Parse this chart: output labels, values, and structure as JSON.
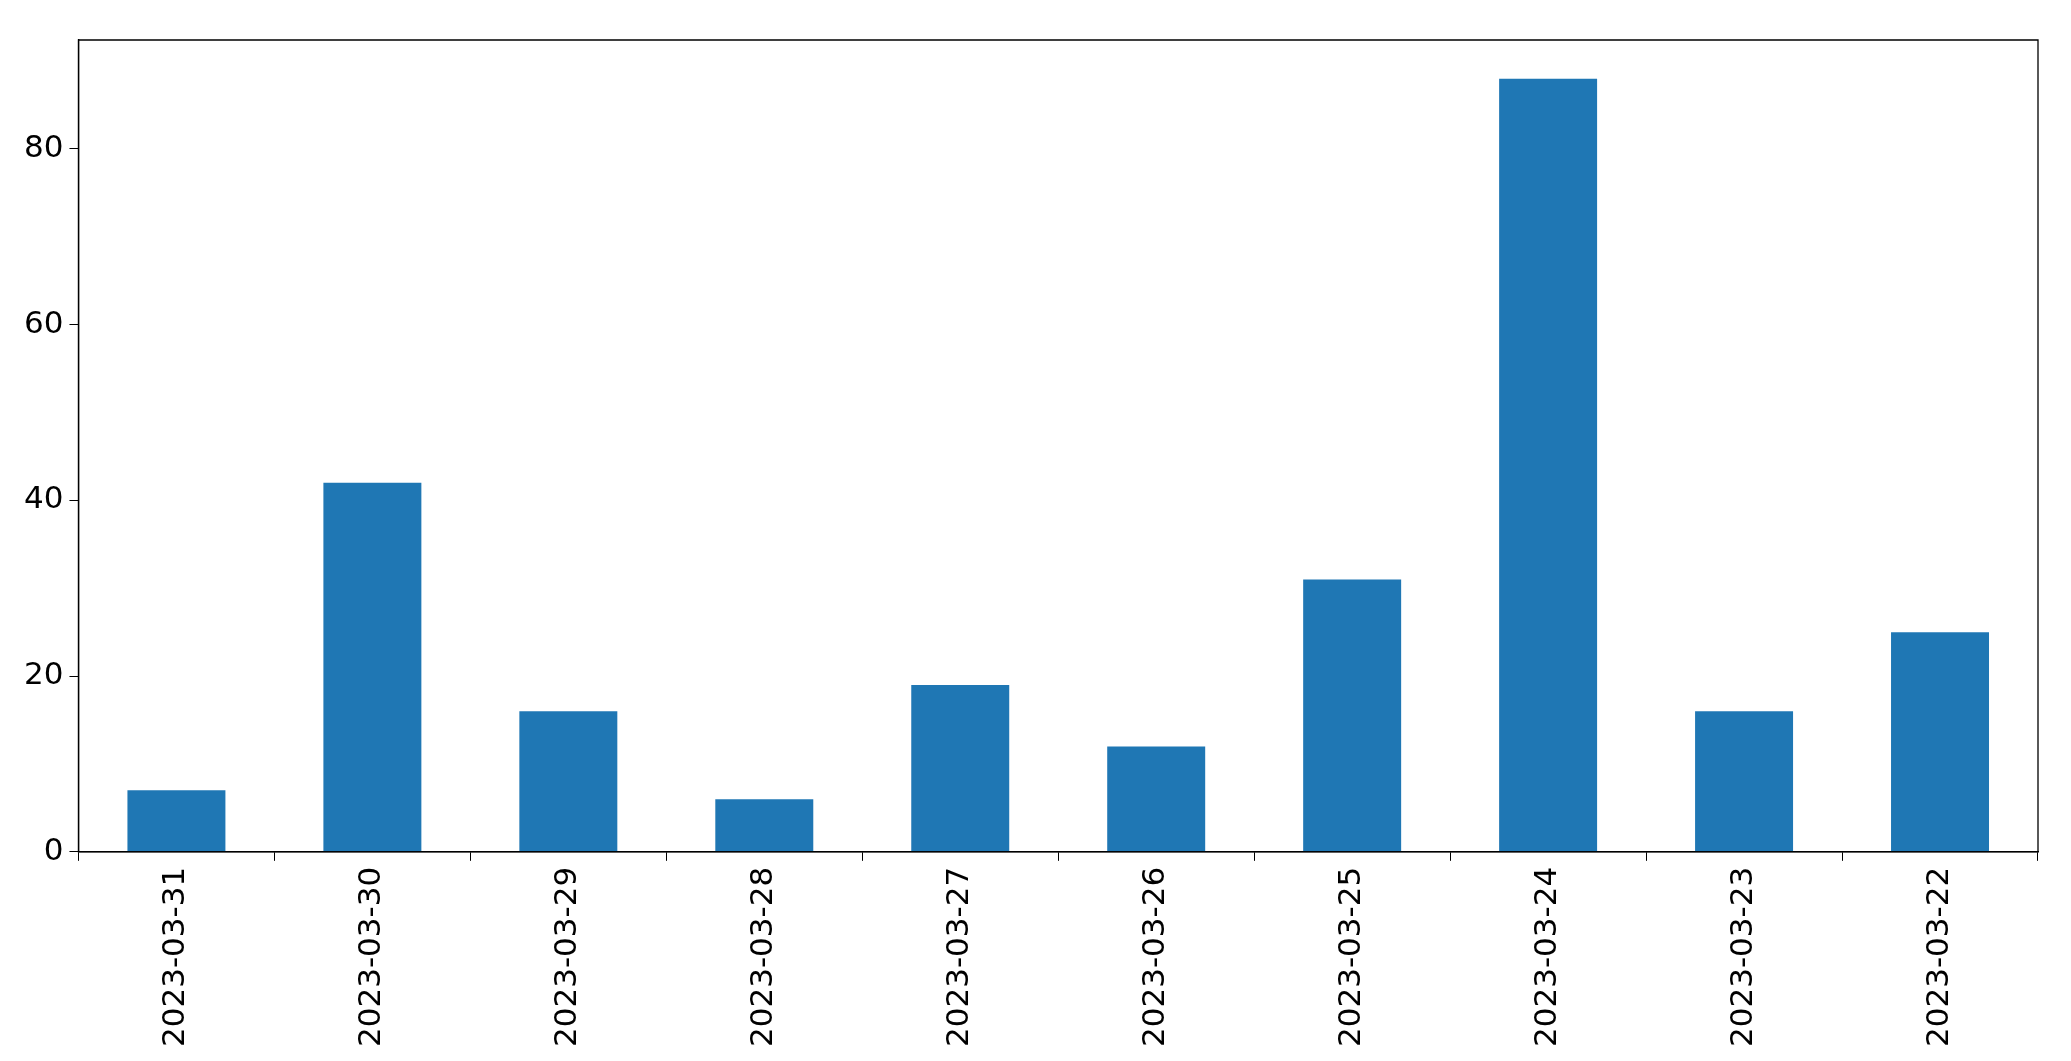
{
  "chart_data": {
    "type": "bar",
    "categories": [
      "2023-03-31",
      "2023-03-30",
      "2023-03-29",
      "2023-03-28",
      "2023-03-27",
      "2023-03-26",
      "2023-03-25",
      "2023-03-24",
      "2023-03-23",
      "2023-03-22"
    ],
    "values": [
      7,
      42,
      16,
      6,
      19,
      12,
      31,
      88,
      16,
      25
    ],
    "color": "#1f77b4",
    "ylim": [
      0,
      92.4
    ],
    "yticks": [
      0,
      20,
      40,
      60,
      80
    ],
    "grid": false,
    "legend": false
  }
}
